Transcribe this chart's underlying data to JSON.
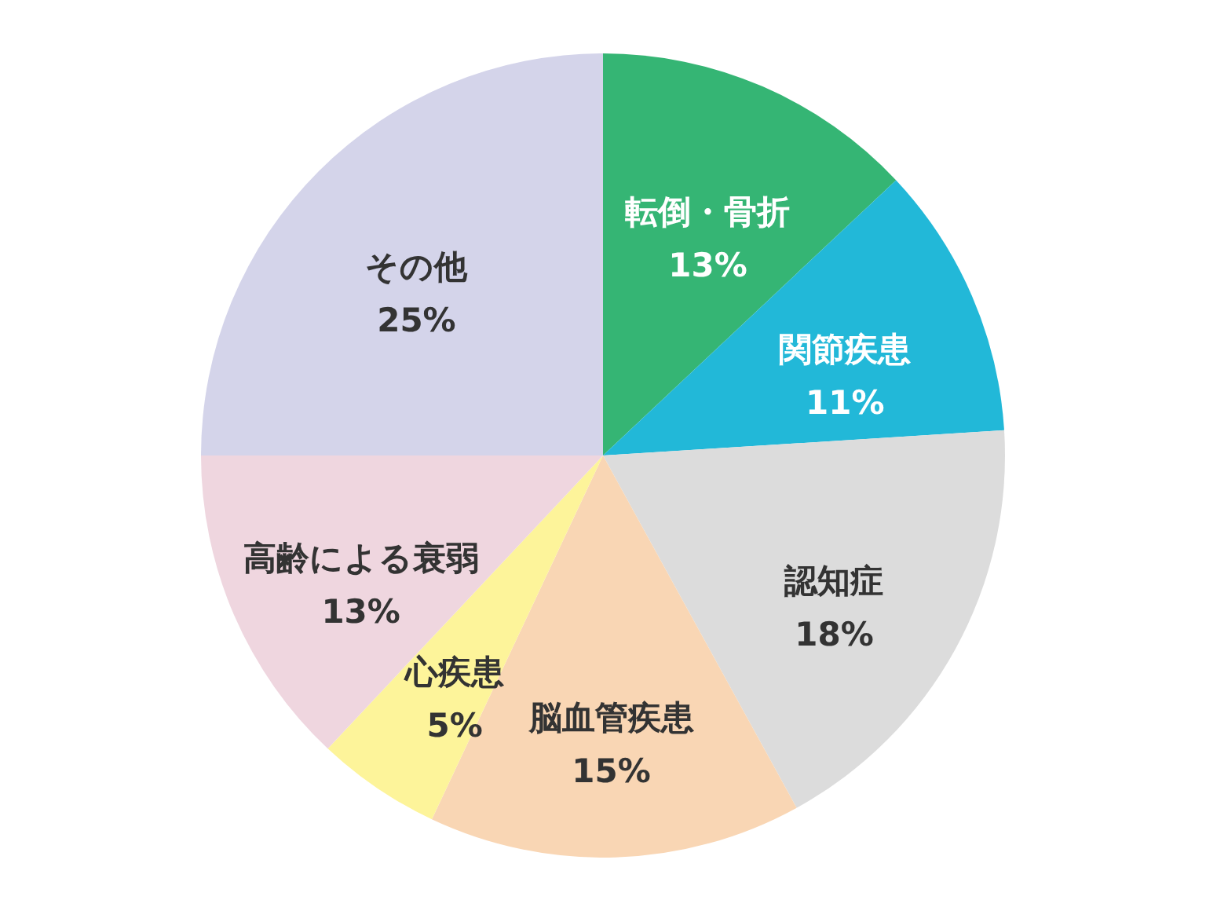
{
  "chart_data": {
    "type": "pie",
    "categories": [
      "転倒・骨折",
      "関節疾患",
      "認知症",
      "脳血管疾患",
      "心疾患",
      "高齢による衰弱",
      "その他"
    ],
    "values": [
      13,
      11,
      18,
      15,
      5,
      13,
      25
    ],
    "colors": [
      "#35b574",
      "#22b8d8",
      "#dcdcdc",
      "#f9d6b4",
      "#fdf49a",
      "#efd6df",
      "#d4d4ea"
    ],
    "value_labels": [
      "13%",
      "11%",
      "18%",
      "15%",
      "5%",
      "13%",
      "25%"
    ]
  }
}
